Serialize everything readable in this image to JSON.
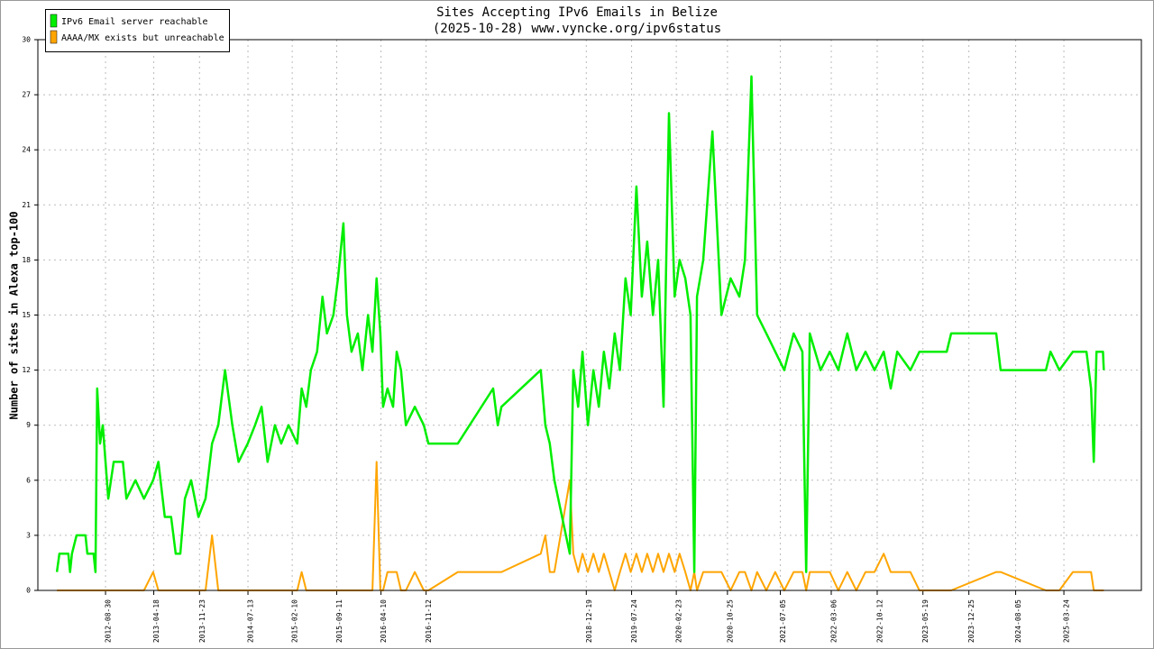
{
  "chart_data": {
    "type": "line",
    "title": "Sites Accepting IPv6 Emails in Belize",
    "subtitle": "(2025-10-28) www.vyncke.org/ipv6status",
    "y_label": "Number of sites in Alexa top-100",
    "legend": "top-left",
    "grid": true,
    "xlim": [
      "2011-10-11",
      "2026-03-30"
    ],
    "xticks": [
      "2012-08-30",
      "2013-04-18",
      "2013-11-23",
      "2014-07-13",
      "2015-02-10",
      "2015-09-11",
      "2016-04-10",
      "2016-11-12",
      "2018-12-19",
      "2019-07-24",
      "2020-02-23",
      "2020-10-25",
      "2021-07-05",
      "2022-03-06",
      "2022-10-12",
      "2023-05-19",
      "2023-12-25",
      "2024-08-05",
      "2025-03-24"
    ],
    "ylim": [
      0,
      30
    ],
    "yticks": [
      0,
      3,
      6,
      9,
      12,
      15,
      18,
      21,
      24,
      27,
      30
    ],
    "x": [
      "2012-01-10",
      "2012-01-22",
      "2012-03-05",
      "2012-03-13",
      "2012-03-22",
      "2012-04-13",
      "2012-05-26",
      "2012-06-04",
      "2012-07-04",
      "2012-07-13",
      "2012-07-21",
      "2012-08-04",
      "2012-08-17",
      "2012-09-12",
      "2012-10-08",
      "2012-11-21",
      "2012-12-08",
      "2013-01-20",
      "2013-03-02",
      "2013-04-15",
      "2013-05-10",
      "2013-06-10",
      "2013-07-10",
      "2013-08-01",
      "2013-08-23",
      "2013-09-14",
      "2013-10-14",
      "2013-11-18",
      "2013-12-22",
      "2014-01-22",
      "2014-02-21",
      "2014-03-25",
      "2014-04-29",
      "2014-05-29",
      "2014-07-12",
      "2014-08-16",
      "2014-09-16",
      "2014-10-15",
      "2014-11-19",
      "2014-12-19",
      "2015-01-23",
      "2015-03-06",
      "2015-03-27",
      "2015-04-18",
      "2015-05-10",
      "2015-06-09",
      "2015-07-05",
      "2015-07-26",
      "2015-08-26",
      "2015-09-17",
      "2015-10-13",
      "2015-10-30",
      "2015-11-21",
      "2015-12-21",
      "2016-01-12",
      "2016-02-08",
      "2016-02-29",
      "2016-03-20",
      "2016-04-07",
      "2016-04-20",
      "2016-05-11",
      "2016-06-07",
      "2016-06-24",
      "2016-07-15",
      "2016-08-07",
      "2016-09-19",
      "2016-11-01",
      "2016-11-23",
      "2017-04-13",
      "2017-09-29",
      "2017-10-21",
      "2017-11-08",
      "2018-05-15",
      "2018-06-06",
      "2018-06-27",
      "2018-07-19",
      "2018-10-01",
      "2018-10-18",
      "2018-11-10",
      "2018-12-01",
      "2018-12-27",
      "2019-01-22",
      "2019-02-17",
      "2019-03-13",
      "2019-04-08",
      "2019-05-04",
      "2019-05-29",
      "2019-06-25",
      "2019-07-20",
      "2019-08-16",
      "2019-09-11",
      "2019-10-07",
      "2019-11-03",
      "2019-11-28",
      "2019-12-24",
      "2020-01-19",
      "2020-02-15",
      "2020-03-10",
      "2020-04-06",
      "2020-05-01",
      "2020-05-19",
      "2020-06-01",
      "2020-07-01",
      "2020-08-14",
      "2020-09-26",
      "2020-11-09",
      "2020-12-21",
      "2021-01-17",
      "2021-02-17",
      "2021-03-16",
      "2021-04-29",
      "2021-06-11",
      "2021-07-24",
      "2021-09-07",
      "2021-10-19",
      "2021-11-06",
      "2021-11-23",
      "2022-01-14",
      "2022-02-27",
      "2022-04-09",
      "2022-05-22",
      "2022-07-04",
      "2022-08-17",
      "2022-09-29",
      "2022-11-12",
      "2022-12-16",
      "2023-01-16",
      "2023-03-20",
      "2023-05-02",
      "2023-09-10",
      "2023-10-01",
      "2024-05-04",
      "2024-05-25",
      "2024-12-28",
      "2025-01-19",
      "2025-03-02",
      "2025-05-06",
      "2025-07-10",
      "2025-08-01",
      "2025-08-14",
      "2025-08-27",
      "2025-09-27",
      "2025-10-01"
    ],
    "series": [
      {
        "name": "IPv6 Email server reachable",
        "color": "#00ee00",
        "values": [
          1,
          2,
          2,
          1,
          2,
          3,
          3,
          2,
          2,
          1,
          11,
          8,
          9,
          5,
          7,
          7,
          5,
          6,
          5,
          6,
          7,
          4,
          4,
          2,
          2,
          5,
          6,
          4,
          5,
          8,
          9,
          12,
          9,
          7,
          8,
          9,
          10,
          7,
          9,
          8,
          9,
          8,
          11,
          10,
          12,
          13,
          16,
          14,
          15,
          17,
          20,
          15,
          13,
          14,
          12,
          15,
          13,
          17,
          14,
          10,
          11,
          10,
          13,
          12,
          9,
          10,
          9,
          8,
          8,
          11,
          9,
          10,
          12,
          9,
          8,
          6,
          2,
          12,
          10,
          13,
          9,
          12,
          10,
          13,
          11,
          14,
          12,
          17,
          15,
          22,
          16,
          19,
          15,
          18,
          10,
          26,
          16,
          18,
          17,
          15,
          1,
          16,
          18,
          25,
          15,
          17,
          16,
          18,
          28,
          15,
          14,
          13,
          12,
          14,
          13,
          1,
          14,
          12,
          13,
          12,
          14,
          12,
          13,
          12,
          13,
          11,
          13,
          12,
          13,
          13,
          14,
          14,
          12,
          12,
          13,
          12,
          13,
          13,
          11,
          7,
          13,
          13,
          12
        ]
      },
      {
        "name": "AAAA/MX exists but unreachable",
        "color": "#ffa500",
        "values": [
          0,
          0,
          0,
          0,
          0,
          0,
          0,
          0,
          0,
          0,
          0,
          0,
          0,
          0,
          0,
          0,
          0,
          0,
          0,
          1,
          0,
          0,
          0,
          0,
          0,
          0,
          0,
          0,
          0,
          3,
          0,
          0,
          0,
          0,
          0,
          0,
          0,
          0,
          0,
          0,
          0,
          0,
          1,
          0,
          0,
          0,
          0,
          0,
          0,
          0,
          0,
          0,
          0,
          0,
          0,
          0,
          0,
          7,
          0,
          0,
          1,
          1,
          1,
          0,
          0,
          1,
          0,
          0,
          1,
          1,
          1,
          1,
          2,
          3,
          1,
          1,
          6,
          2,
          1,
          2,
          1,
          2,
          1,
          2,
          1,
          0,
          1,
          2,
          1,
          2,
          1,
          2,
          1,
          2,
          1,
          2,
          1,
          2,
          1,
          0,
          1,
          0,
          1,
          1,
          1,
          0,
          1,
          1,
          0,
          1,
          0,
          1,
          0,
          1,
          1,
          0,
          1,
          1,
          1,
          0,
          1,
          0,
          1,
          1,
          2,
          1,
          1,
          1,
          0,
          0,
          0,
          1,
          1,
          0,
          0,
          0,
          1,
          1,
          1,
          0,
          0,
          0,
          0
        ]
      }
    ]
  }
}
